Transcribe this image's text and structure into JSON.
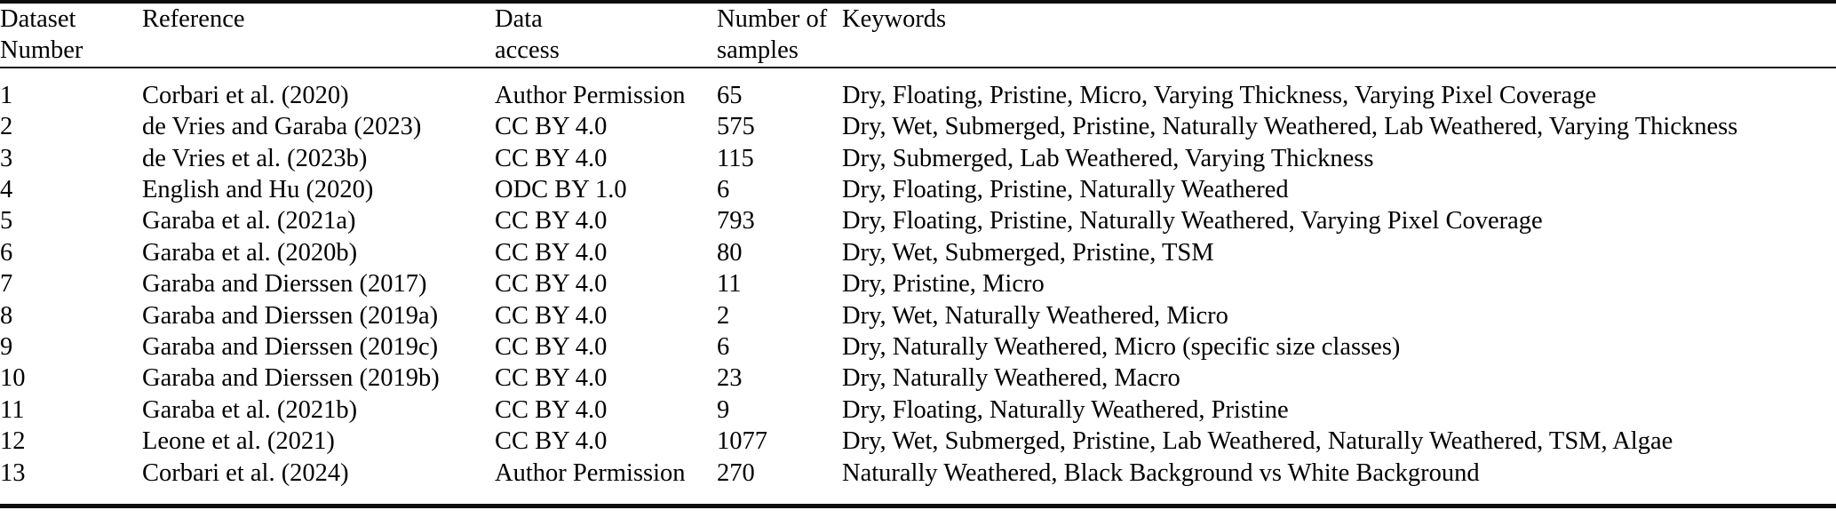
{
  "table": {
    "headers": {
      "dataset_number": {
        "lines": [
          "Dataset",
          "Number"
        ]
      },
      "reference": {
        "lines": [
          "Reference"
        ]
      },
      "data_access": {
        "lines": [
          "Data",
          "access"
        ]
      },
      "num_samples": {
        "lines": [
          "Number of",
          "samples"
        ]
      },
      "keywords": {
        "lines": [
          "Keywords"
        ]
      }
    },
    "rows": [
      {
        "number": "1",
        "reference": "Corbari et al. (2020)",
        "access": "Author Permission",
        "samples": "65",
        "keywords": "Dry, Floating, Pristine, Micro, Varying Thickness, Varying Pixel Coverage"
      },
      {
        "number": "2",
        "reference": "de Vries and Garaba (2023)",
        "access": "CC BY 4.0",
        "samples": "575",
        "keywords": "Dry, Wet, Submerged, Pristine, Naturally Weathered, Lab Weathered, Varying Thickness"
      },
      {
        "number": "3",
        "reference": "de Vries et al. (2023b)",
        "access": "CC BY 4.0",
        "samples": "115",
        "keywords": "Dry, Submerged, Lab Weathered, Varying Thickness"
      },
      {
        "number": "4",
        "reference": "English and Hu (2020)",
        "access": "ODC BY 1.0",
        "samples": "6",
        "keywords": "Dry, Floating, Pristine, Naturally Weathered"
      },
      {
        "number": "5",
        "reference": "Garaba et al. (2021a)",
        "access": "CC BY 4.0",
        "samples": "793",
        "keywords": "Dry, Floating, Pristine, Naturally Weathered, Varying Pixel Coverage"
      },
      {
        "number": "6",
        "reference": "Garaba et al. (2020b)",
        "access": "CC BY 4.0",
        "samples": "80",
        "keywords": "Dry, Wet, Submerged, Pristine, TSM"
      },
      {
        "number": "7",
        "reference": "Garaba and Dierssen (2017)",
        "access": "CC BY 4.0",
        "samples": "11",
        "keywords": "Dry, Pristine, Micro"
      },
      {
        "number": "8",
        "reference": "Garaba and Dierssen (2019a)",
        "access": "CC BY 4.0",
        "samples": "2",
        "keywords": "Dry, Wet, Naturally Weathered, Micro"
      },
      {
        "number": "9",
        "reference": "Garaba and Dierssen (2019c)",
        "access": "CC BY 4.0",
        "samples": "6",
        "keywords": "Dry, Naturally Weathered, Micro (specific size classes)"
      },
      {
        "number": "10",
        "reference": "Garaba and Dierssen (2019b)",
        "access": "CC BY 4.0",
        "samples": "23",
        "keywords": "Dry, Naturally Weathered, Macro"
      },
      {
        "number": "11",
        "reference": "Garaba et al. (2021b)",
        "access": "CC BY 4.0",
        "samples": "9",
        "keywords": "Dry, Floating, Naturally Weathered, Pristine"
      },
      {
        "number": "12",
        "reference": "Leone et al. (2021)",
        "access": "CC BY 4.0",
        "samples": "1077",
        "keywords": "Dry, Wet, Submerged, Pristine, Lab Weathered, Naturally Weathered, TSM, Algae"
      },
      {
        "number": "13",
        "reference": "Corbari et al. (2024)",
        "access": "Author Permission",
        "samples": "270",
        "keywords": "Naturally Weathered, Black Background vs White Background"
      }
    ]
  },
  "colors": {
    "text": "#000000",
    "rule": "#0d0d0d",
    "background": "#ffffff"
  }
}
